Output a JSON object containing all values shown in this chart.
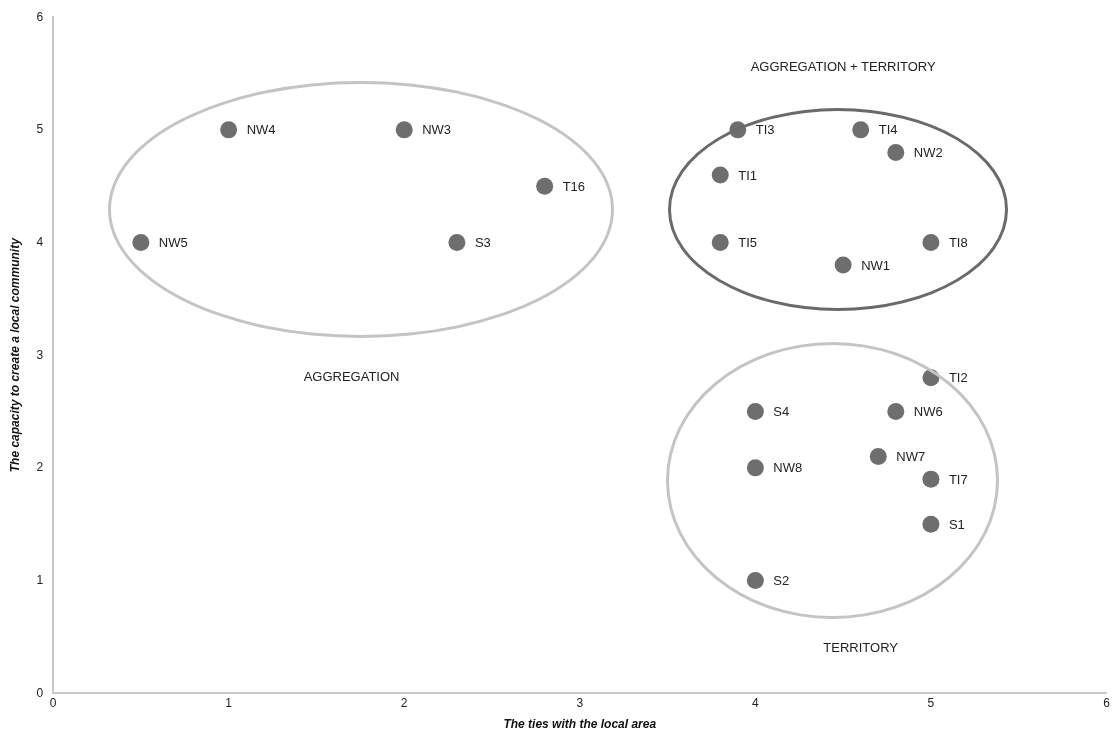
{
  "chart_data": {
    "type": "scatter",
    "xlabel": "The ties with the local area",
    "ylabel": "The capacity to create a local community",
    "xlim": [
      0,
      6
    ],
    "xticks": [
      0,
      1,
      2,
      3,
      4,
      5,
      6
    ],
    "ylim": [
      0,
      6
    ],
    "yticks": [
      0,
      1,
      2,
      3,
      4,
      5,
      6
    ],
    "grid": false,
    "legend": false,
    "marker": "circle",
    "series": [
      {
        "name": "NW4",
        "color": "#6e6e6e",
        "x": [
          1
        ],
        "values": [
          5
        ]
      },
      {
        "name": "NW3",
        "color": "#6e6e6e",
        "x": [
          2
        ],
        "values": [
          5
        ]
      },
      {
        "name": "T16",
        "color": "#6e6e6e",
        "x": [
          2.8
        ],
        "values": [
          4.5
        ]
      },
      {
        "name": "NW5",
        "color": "#6e6e6e",
        "x": [
          0.5
        ],
        "values": [
          4
        ]
      },
      {
        "name": "S3",
        "color": "#6e6e6e",
        "x": [
          2.3
        ],
        "values": [
          4
        ]
      },
      {
        "name": "TI3",
        "color": "#6e6e6e",
        "x": [
          3.9
        ],
        "values": [
          5
        ]
      },
      {
        "name": "TI4",
        "color": "#6e6e6e",
        "x": [
          4.6
        ],
        "values": [
          5
        ]
      },
      {
        "name": "NW2",
        "color": "#6e6e6e",
        "x": [
          4.8
        ],
        "values": [
          4.8
        ]
      },
      {
        "name": "TI1",
        "color": "#6e6e6e",
        "x": [
          3.8
        ],
        "values": [
          4.6
        ]
      },
      {
        "name": "TI5",
        "color": "#6e6e6e",
        "x": [
          3.8
        ],
        "values": [
          4
        ]
      },
      {
        "name": "TI8",
        "color": "#6e6e6e",
        "x": [
          5
        ],
        "values": [
          4
        ]
      },
      {
        "name": "NW1",
        "color": "#6e6e6e",
        "x": [
          4.5
        ],
        "values": [
          3.8
        ]
      },
      {
        "name": "TI2",
        "color": "#6e6e6e",
        "x": [
          5
        ],
        "values": [
          2.8
        ]
      },
      {
        "name": "S4",
        "color": "#6e6e6e",
        "x": [
          4
        ],
        "values": [
          2.5
        ]
      },
      {
        "name": "NW6",
        "color": "#6e6e6e",
        "x": [
          4.8
        ],
        "values": [
          2.5
        ]
      },
      {
        "name": "NW7",
        "color": "#6e6e6e",
        "x": [
          4.7
        ],
        "values": [
          2.1
        ]
      },
      {
        "name": "NW8",
        "color": "#6e6e6e",
        "x": [
          4
        ],
        "values": [
          2
        ]
      },
      {
        "name": "TI7",
        "color": "#6e6e6e",
        "x": [
          5
        ],
        "values": [
          1.9
        ]
      },
      {
        "name": "S1",
        "color": "#6e6e6e",
        "x": [
          5
        ],
        "values": [
          1.5
        ]
      },
      {
        "name": "S2",
        "color": "#6e6e6e",
        "x": [
          4
        ],
        "values": [
          1
        ]
      }
    ],
    "annotations": [
      "AGGREGATION",
      "AGGREGATION + TERRITORY",
      "TERRITORY"
    ]
  }
}
